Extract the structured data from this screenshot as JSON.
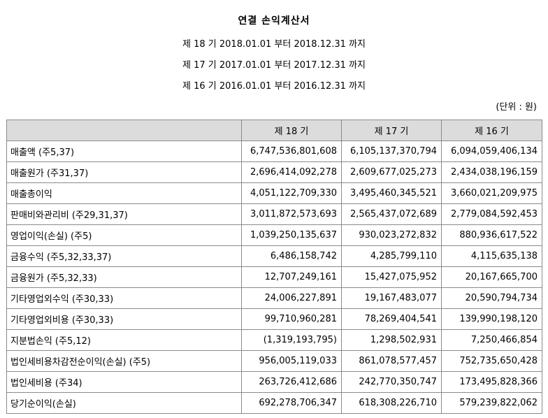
{
  "title": "연결 손익계산서",
  "periods": [
    "제 18 기 2018.01.01 부터 2018.12.31 까지",
    "제 17 기 2017.01.01 부터 2017.12.31 까지",
    "제 16 기 2016.01.01 부터 2016.12.31 까지"
  ],
  "unit": "(단위 : 원)",
  "columns": [
    "",
    "제 18 기",
    "제 17 기",
    "제 16 기"
  ],
  "rows": [
    {
      "label": "매출액 (주5,37)",
      "v18": "6,747,536,801,608",
      "v17": "6,105,137,370,794",
      "v16": "6,094,059,406,134"
    },
    {
      "label": "매출원가 (주31,37)",
      "v18": "2,696,414,092,278",
      "v17": "2,609,677,025,273",
      "v16": "2,434,038,196,159"
    },
    {
      "label": "매출총이익",
      "v18": "4,051,122,709,330",
      "v17": "3,495,460,345,521",
      "v16": "3,660,021,209,975"
    },
    {
      "label": "판매비와관리비 (주29,31,37)",
      "v18": "3,011,872,573,693",
      "v17": "2,565,437,072,689",
      "v16": "2,779,084,592,453"
    },
    {
      "label": "영업이익(손실) (주5)",
      "v18": "1,039,250,135,637",
      "v17": "930,023,272,832",
      "v16": "880,936,617,522"
    },
    {
      "label": "금융수익 (주5,32,33,37)",
      "v18": "6,486,158,742",
      "v17": "4,285,799,110",
      "v16": "4,115,635,138"
    },
    {
      "label": "금융원가 (주5,32,33)",
      "v18": "12,707,249,161",
      "v17": "15,427,075,952",
      "v16": "20,167,665,700"
    },
    {
      "label": "기타영업외수익 (주30,33)",
      "v18": "24,006,227,891",
      "v17": "19,167,483,077",
      "v16": "20,590,794,734"
    },
    {
      "label": "기타영업외비용 (주30,33)",
      "v18": "99,710,960,281",
      "v17": "78,269,404,541",
      "v16": "139,990,198,120"
    },
    {
      "label": "지분법손익 (주5,12)",
      "v18": "(1,319,193,795)",
      "v17": "1,298,502,931",
      "v16": "7,250,466,854"
    },
    {
      "label": "법인세비용차감전순이익(손실) (주5)",
      "v18": "956,005,119,033",
      "v17": "861,078,577,457",
      "v16": "752,735,650,428"
    },
    {
      "label": "법인세비용 (주34)",
      "v18": "263,726,412,686",
      "v17": "242,770,350,747",
      "v16": "173,495,828,366"
    },
    {
      "label": "당기순이익(손실)",
      "v18": "692,278,706,347",
      "v17": "618,308,226,710",
      "v16": "579,239,822,062"
    }
  ]
}
